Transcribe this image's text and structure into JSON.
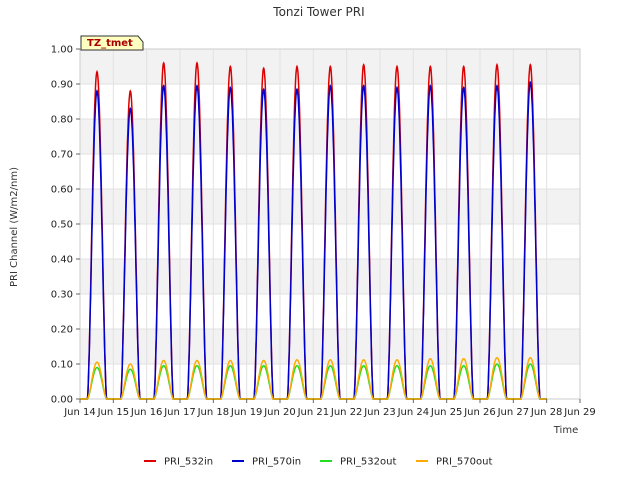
{
  "chart_data": {
    "type": "line",
    "title": "Tonzi Tower PRI",
    "xlabel": "Time",
    "ylabel": "PRI Channel (W/m2/nm)",
    "annotation": "TZ_tmet",
    "ylim": [
      0,
      1.0
    ],
    "xlim": [
      14,
      29
    ],
    "y_ticks": [
      "0.00",
      "0.10",
      "0.20",
      "0.30",
      "0.40",
      "0.50",
      "0.60",
      "0.70",
      "0.80",
      "0.90",
      "1.00"
    ],
    "x_ticks": [
      "Jun 14",
      "Jun 15",
      "Jun 16",
      "Jun 17",
      "Jun 18",
      "Jun 19",
      "Jun 20",
      "Jun 21",
      "Jun 22",
      "Jun 23",
      "Jun 24",
      "Jun 25",
      "Jun 26",
      "Jun 27",
      "Jun 28",
      "Jun 29"
    ],
    "x_tick_values": [
      14,
      15,
      16,
      17,
      18,
      19,
      20,
      21,
      22,
      23,
      24,
      25,
      26,
      27,
      28,
      29
    ],
    "grid": true,
    "legend_position": "bottom",
    "day_starts": [
      14,
      15,
      16,
      17,
      18,
      19,
      20,
      21,
      22,
      23,
      24,
      25,
      26,
      27
    ],
    "series": [
      {
        "name": "PRI_532in",
        "color": "#dd0000",
        "daily_peaks": [
          0.935,
          0.88,
          0.96,
          0.96,
          0.95,
          0.945,
          0.95,
          0.95,
          0.955,
          0.95,
          0.95,
          0.95,
          0.955,
          0.955
        ]
      },
      {
        "name": "PRI_570in",
        "color": "#0000cc",
        "daily_peaks": [
          0.88,
          0.83,
          0.895,
          0.895,
          0.89,
          0.885,
          0.885,
          0.895,
          0.895,
          0.89,
          0.895,
          0.89,
          0.895,
          0.905
        ]
      },
      {
        "name": "PRI_532out",
        "color": "#22dd22",
        "daily_peaks": [
          0.09,
          0.085,
          0.095,
          0.095,
          0.095,
          0.095,
          0.095,
          0.095,
          0.095,
          0.095,
          0.095,
          0.095,
          0.1,
          0.1
        ]
      },
      {
        "name": "PRI_570out",
        "color": "#ffaa00",
        "daily_peaks": [
          0.105,
          0.1,
          0.11,
          0.11,
          0.11,
          0.11,
          0.112,
          0.112,
          0.112,
          0.112,
          0.115,
          0.115,
          0.118,
          0.118
        ]
      }
    ]
  }
}
